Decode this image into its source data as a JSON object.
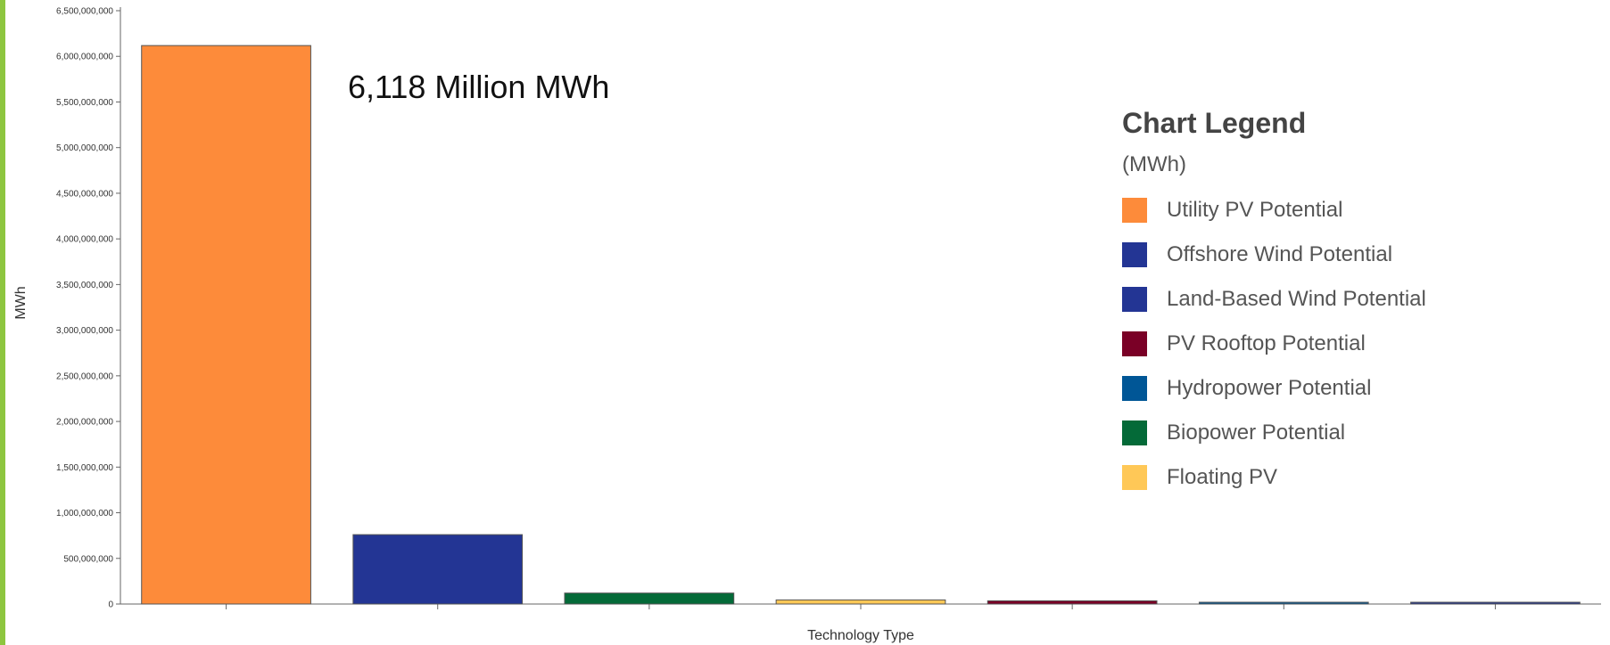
{
  "chart_data": {
    "type": "bar",
    "title": "",
    "xlabel": "Technology Type",
    "ylabel": "MWh",
    "ylim": [
      0,
      6500000000
    ],
    "yticks": [
      0,
      500000000,
      1000000000,
      1500000000,
      2000000000,
      2500000000,
      3000000000,
      3500000000,
      4000000000,
      4500000000,
      5000000000,
      5500000000,
      6000000000,
      6500000000
    ],
    "ytick_labels": [
      "0",
      "500,000,000",
      "1,000,000,000",
      "1,500,000,000",
      "2,000,000,000",
      "2,500,000,000",
      "3,000,000,000",
      "3,500,000,000",
      "4,000,000,000",
      "4,500,000,000",
      "5,000,000,000",
      "5,500,000,000",
      "6,000,000,000",
      "6,500,000,000"
    ],
    "grid": false,
    "legend_position": "right",
    "categories": [
      "Utility PV Potential",
      "Offshore Wind Potential",
      "Biopower Potential",
      "Floating PV",
      "PV Rooftop Potential",
      "Hydropower Potential",
      "Land-Based Wind Potential"
    ],
    "values": [
      6118000000,
      760000000,
      120000000,
      45000000,
      35000000,
      12000000,
      5000000
    ],
    "bar_colors": [
      "#fd8b3a",
      "#233594",
      "#046a38",
      "#ffc857",
      "#7a0026",
      "#005696",
      "#233594"
    ],
    "annotation": "6,118 Million MWh",
    "legend": {
      "title": "Chart Legend",
      "unit": "(MWh)",
      "items": [
        {
          "label": "Utility PV Potential",
          "color": "#fd8b3a"
        },
        {
          "label": "Offshore Wind Potential",
          "color": "#233594"
        },
        {
          "label": "Land-Based Wind Potential",
          "color": "#233594"
        },
        {
          "label": "PV Rooftop Potential",
          "color": "#7a0026"
        },
        {
          "label": "Hydropower Potential",
          "color": "#005696"
        },
        {
          "label": "Biopower Potential",
          "color": "#046a38"
        },
        {
          "label": "Floating PV",
          "color": "#ffc857"
        }
      ]
    }
  },
  "colors": {
    "left_accent": "#8dc63f",
    "axis": "#666666"
  }
}
